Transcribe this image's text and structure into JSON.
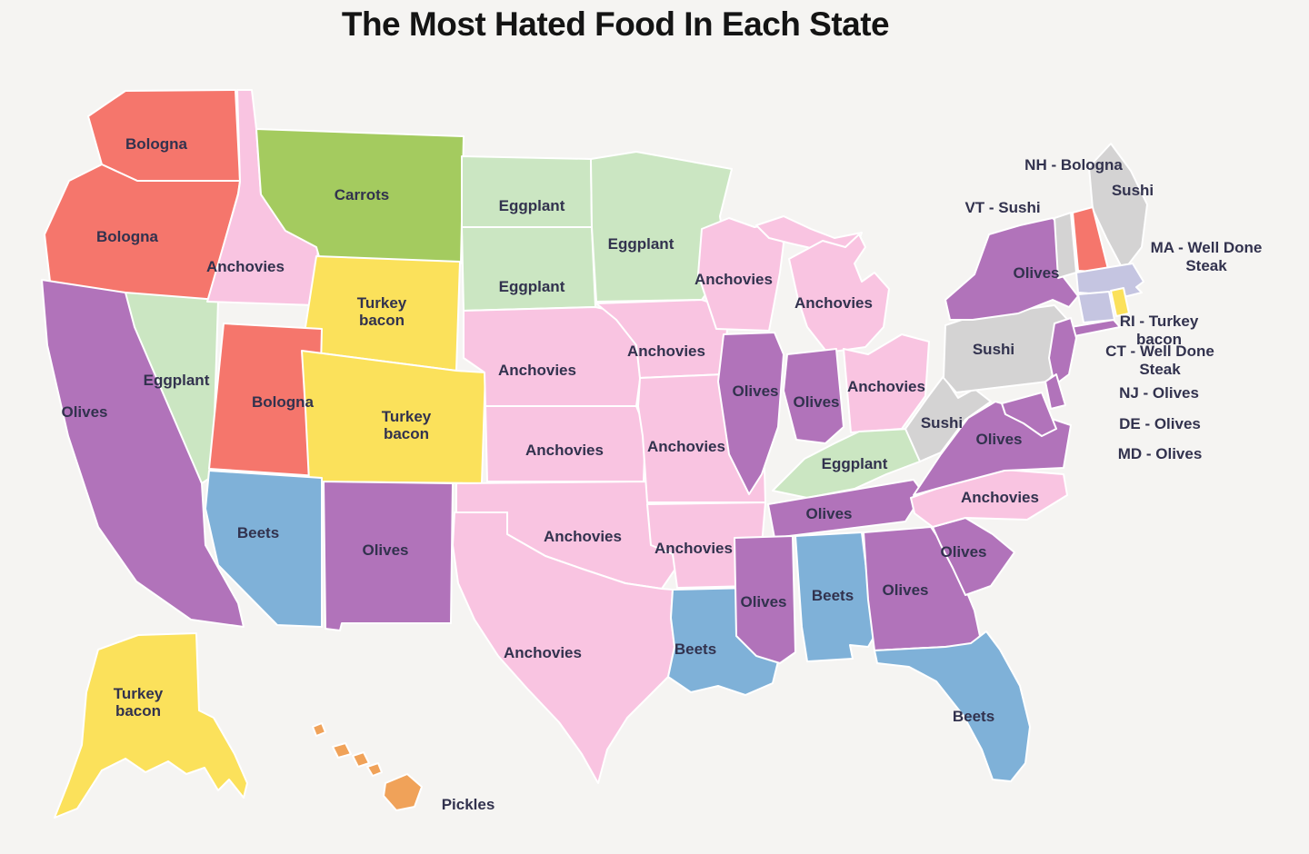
{
  "title": "The Most Hated Food In Each State",
  "colors": {
    "background": "#f5f4f2",
    "state_border": "#ffffff",
    "label_text": "#32324e",
    "title_text": "#141414",
    "foods": {
      "Bologna": "#f5766c",
      "Carrots": "#a4cb5f",
      "Eggplant": "#cbe6c2",
      "Anchovies": "#f9c4e1",
      "Turkey bacon": "#fbe15b",
      "Olives": "#b173ba",
      "Beets": "#7fb1d8",
      "Sushi": "#d4d3d3",
      "Well Done Steak": "#c5c5e1",
      "Pickles": "#f0a259"
    }
  },
  "states": [
    {
      "id": "WA",
      "name": "Washington",
      "food": "Bologna",
      "label": [
        "Bologna"
      ]
    },
    {
      "id": "OR",
      "name": "Oregon",
      "food": "Bologna",
      "label": [
        "Bologna"
      ]
    },
    {
      "id": "CA",
      "name": "California",
      "food": "Olives",
      "label": [
        "Olives"
      ]
    },
    {
      "id": "NV",
      "name": "Nevada",
      "food": "Eggplant",
      "label": [
        "Eggplant"
      ]
    },
    {
      "id": "ID",
      "name": "Idaho",
      "food": "Anchovies",
      "label": [
        "Anchovies"
      ]
    },
    {
      "id": "MT",
      "name": "Montana",
      "food": "Carrots",
      "label": [
        "Carrots"
      ]
    },
    {
      "id": "WY",
      "name": "Wyoming",
      "food": "Turkey bacon",
      "label": [
        "Turkey",
        "bacon"
      ]
    },
    {
      "id": "UT",
      "name": "Utah",
      "food": "Bologna",
      "label": [
        "Bologna"
      ]
    },
    {
      "id": "CO",
      "name": "Colorado",
      "food": "Turkey bacon",
      "label": [
        "Turkey",
        "bacon"
      ]
    },
    {
      "id": "AZ",
      "name": "Arizona",
      "food": "Beets",
      "label": [
        "Beets"
      ]
    },
    {
      "id": "NM",
      "name": "New Mexico",
      "food": "Olives",
      "label": [
        "Olives"
      ]
    },
    {
      "id": "ND",
      "name": "North Dakota",
      "food": "Eggplant",
      "label": [
        "Eggplant"
      ]
    },
    {
      "id": "SD",
      "name": "South Dakota",
      "food": "Eggplant",
      "label": [
        "Eggplant"
      ]
    },
    {
      "id": "NE",
      "name": "Nebraska",
      "food": "Anchovies",
      "label": [
        "Anchovies"
      ]
    },
    {
      "id": "KS",
      "name": "Kansas",
      "food": "Anchovies",
      "label": [
        "Anchovies"
      ]
    },
    {
      "id": "OK",
      "name": "Oklahoma",
      "food": "Anchovies",
      "label": [
        "Anchovies"
      ]
    },
    {
      "id": "TX",
      "name": "Texas",
      "food": "Anchovies",
      "label": [
        "Anchovies"
      ]
    },
    {
      "id": "MN",
      "name": "Minnesota",
      "food": "Eggplant",
      "label": [
        "Eggplant"
      ]
    },
    {
      "id": "IA",
      "name": "Iowa",
      "food": "Anchovies",
      "label": [
        "Anchovies"
      ]
    },
    {
      "id": "MO",
      "name": "Missouri",
      "food": "Anchovies",
      "label": [
        "Anchovies"
      ]
    },
    {
      "id": "AR",
      "name": "Arkansas",
      "food": "Anchovies",
      "label": [
        "Anchovies"
      ]
    },
    {
      "id": "LA",
      "name": "Louisiana",
      "food": "Beets",
      "label": [
        "Beets"
      ]
    },
    {
      "id": "WI",
      "name": "Wisconsin",
      "food": "Anchovies",
      "label": [
        "Anchovies"
      ]
    },
    {
      "id": "IL",
      "name": "Illinois",
      "food": "Olives",
      "label": [
        "Olives"
      ]
    },
    {
      "id": "MI",
      "name": "Michigan",
      "food": "Anchovies",
      "label": [
        "Anchovies"
      ]
    },
    {
      "id": "IN",
      "name": "Indiana",
      "food": "Olives",
      "label": [
        "Olives"
      ]
    },
    {
      "id": "OH",
      "name": "Ohio",
      "food": "Anchovies",
      "label": [
        "Anchovies"
      ]
    },
    {
      "id": "KY",
      "name": "Kentucky",
      "food": "Eggplant",
      "label": [
        "Eggplant"
      ]
    },
    {
      "id": "TN",
      "name": "Tennessee",
      "food": "Olives",
      "label": [
        "Olives"
      ]
    },
    {
      "id": "MS",
      "name": "Mississippi",
      "food": "Olives",
      "label": [
        "Olives"
      ]
    },
    {
      "id": "AL",
      "name": "Alabama",
      "food": "Beets",
      "label": [
        "Beets"
      ]
    },
    {
      "id": "GA",
      "name": "Georgia",
      "food": "Olives",
      "label": [
        "Olives"
      ]
    },
    {
      "id": "FL",
      "name": "Florida",
      "food": "Beets",
      "label": [
        "Beets"
      ]
    },
    {
      "id": "SC",
      "name": "South Carolina",
      "food": "Olives",
      "label": [
        "Olives"
      ]
    },
    {
      "id": "NC",
      "name": "North Carolina",
      "food": "Anchovies",
      "label": [
        "Anchovies"
      ]
    },
    {
      "id": "VA",
      "name": "Virginia",
      "food": "Olives",
      "label": [
        "Olives"
      ]
    },
    {
      "id": "WV",
      "name": "West Virginia",
      "food": "Sushi",
      "label": [
        "Sushi"
      ]
    },
    {
      "id": "PA",
      "name": "Pennsylvania",
      "food": "Sushi",
      "label": [
        "Sushi"
      ]
    },
    {
      "id": "NY",
      "name": "New York",
      "food": "Olives",
      "label": [
        "Olives"
      ]
    },
    {
      "id": "ME",
      "name": "Maine",
      "food": "Sushi",
      "label": [
        "Sushi"
      ]
    },
    {
      "id": "VT",
      "name": "Vermont",
      "food": "Sushi",
      "label": null
    },
    {
      "id": "NH",
      "name": "New Hampshire",
      "food": "Bologna",
      "label": null
    },
    {
      "id": "MA",
      "name": "Massachusetts",
      "food": "Well Done Steak",
      "label": null
    },
    {
      "id": "CT",
      "name": "Connecticut",
      "food": "Well Done Steak",
      "label": null
    },
    {
      "id": "RI",
      "name": "Rhode Island",
      "food": "Turkey bacon",
      "label": null
    },
    {
      "id": "NJ",
      "name": "New Jersey",
      "food": "Olives",
      "label": null
    },
    {
      "id": "DE",
      "name": "Delaware",
      "food": "Olives",
      "label": null
    },
    {
      "id": "MD",
      "name": "Maryland",
      "food": "Olives",
      "label": null
    },
    {
      "id": "AK",
      "name": "Alaska",
      "food": "Turkey bacon",
      "label": [
        "Turkey",
        "bacon"
      ]
    },
    {
      "id": "HI",
      "name": "Hawaii",
      "food": "Pickles",
      "label": [
        "Pickles"
      ]
    }
  ],
  "external_labels": [
    {
      "id": "NH",
      "lines": [
        "NH - Bologna"
      ]
    },
    {
      "id": "VT",
      "lines": [
        "VT - Sushi"
      ]
    },
    {
      "id": "MA",
      "lines": [
        "MA - Well Done",
        "Steak"
      ]
    },
    {
      "id": "RI",
      "lines": [
        "RI - Turkey",
        "bacon"
      ]
    },
    {
      "id": "CT",
      "lines": [
        "CT - Well Done",
        "Steak"
      ]
    },
    {
      "id": "NJ",
      "lines": [
        "NJ - Olives"
      ]
    },
    {
      "id": "DE",
      "lines": [
        "DE - Olives"
      ]
    },
    {
      "id": "MD",
      "lines": [
        "MD - Olives"
      ]
    }
  ]
}
